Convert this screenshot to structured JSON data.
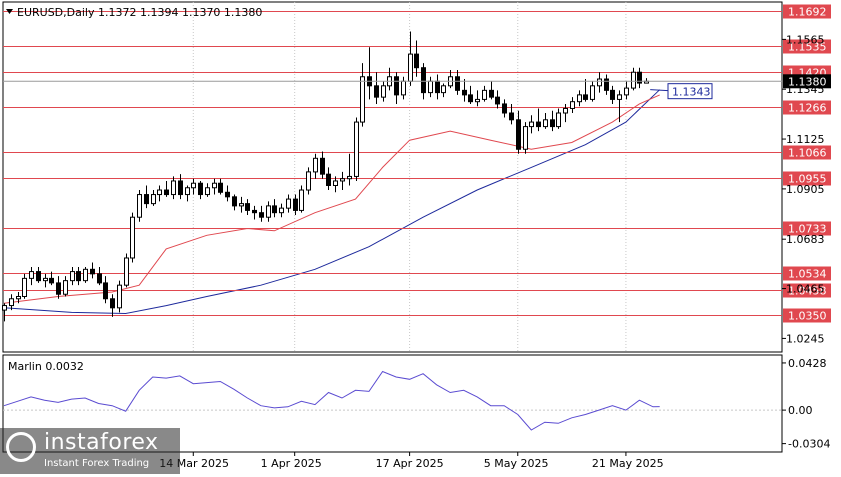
{
  "header": {
    "text": "EURUSD,Daily  1.1372 1.1394 1.1370 1.1380"
  },
  "marlin_label": "Marlin 0.0032",
  "logo": {
    "name": "instaforex",
    "tagline": "Instant Forex Trading"
  },
  "colors": {
    "level_line": "#e0484f",
    "fast_ma": "#e0484f",
    "slow_ma": "#1e2a9c",
    "osc": "#5a4bd1",
    "grid": "#c8c8c8",
    "level_label_bg": "#e0484f",
    "slow_ma_label_border": "#1e2a9c"
  },
  "chart_data": [
    {
      "type": "candlestick",
      "title": "EURUSD,Daily",
      "ohlc_last": {
        "open": 1.1372,
        "high": 1.1394,
        "low": 1.137,
        "close": 1.138
      },
      "ylim": [
        1.0185,
        1.173
      ],
      "y_ticks": [
        "1.1565",
        "1.1345",
        "1.1125",
        "1.0905",
        "1.0683",
        "1.0465",
        "1.0245"
      ],
      "x_ticks": [
        "14 Mar 2025",
        "1 Apr 2025",
        "17 Apr 2025",
        "5 May 2025",
        "21 May 2025"
      ],
      "price_levels": [
        "1.1692",
        "1.1535",
        "1.1420",
        "1.1266",
        "1.1066",
        "1.0955",
        "1.0733",
        "1.0534",
        "1.0458",
        "1.0350"
      ],
      "current_price_label": "1.1380",
      "slow_ma_label": "1.1343",
      "candles": [
        [
          1.037,
          1.04,
          1.032,
          1.039
        ],
        [
          1.039,
          1.044,
          1.037,
          1.042
        ],
        [
          1.042,
          1.045,
          1.04,
          1.043
        ],
        [
          1.043,
          1.053,
          1.042,
          1.051
        ],
        [
          1.051,
          1.056,
          1.048,
          1.054
        ],
        [
          1.054,
          1.056,
          1.049,
          1.05
        ],
        [
          1.05,
          1.053,
          1.047,
          1.051
        ],
        [
          1.051,
          1.054,
          1.048,
          1.049
        ],
        [
          1.049,
          1.052,
          1.042,
          1.044
        ],
        [
          1.044,
          1.052,
          1.043,
          1.05
        ],
        [
          1.05,
          1.056,
          1.048,
          1.054
        ],
        [
          1.054,
          1.056,
          1.048,
          1.05
        ],
        [
          1.05,
          1.056,
          1.049,
          1.055
        ],
        [
          1.055,
          1.058,
          1.051,
          1.053
        ],
        [
          1.053,
          1.056,
          1.048,
          1.049
        ],
        [
          1.049,
          1.052,
          1.04,
          1.042
        ],
        [
          1.042,
          1.044,
          1.034,
          1.038
        ],
        [
          1.038,
          1.05,
          1.036,
          1.048
        ],
        [
          1.048,
          1.062,
          1.047,
          1.06
        ],
        [
          1.06,
          1.08,
          1.058,
          1.078
        ],
        [
          1.078,
          1.09,
          1.076,
          1.088
        ],
        [
          1.088,
          1.092,
          1.082,
          1.084
        ],
        [
          1.084,
          1.09,
          1.083,
          1.088
        ],
        [
          1.088,
          1.092,
          1.085,
          1.09
        ],
        [
          1.09,
          1.094,
          1.087,
          1.088
        ],
        [
          1.088,
          1.096,
          1.086,
          1.094
        ],
        [
          1.094,
          1.097,
          1.086,
          1.088
        ],
        [
          1.088,
          1.092,
          1.085,
          1.091
        ],
        [
          1.091,
          1.095,
          1.088,
          1.093
        ],
        [
          1.093,
          1.094,
          1.086,
          1.088
        ],
        [
          1.088,
          1.093,
          1.087,
          1.091
        ],
        [
          1.091,
          1.095,
          1.088,
          1.093
        ],
        [
          1.093,
          1.095,
          1.088,
          1.089
        ],
        [
          1.089,
          1.092,
          1.085,
          1.087
        ],
        [
          1.087,
          1.088,
          1.081,
          1.083
        ],
        [
          1.083,
          1.087,
          1.08,
          1.084
        ],
        [
          1.084,
          1.086,
          1.079,
          1.081
        ],
        [
          1.081,
          1.083,
          1.077,
          1.08
        ],
        [
          1.08,
          1.083,
          1.076,
          1.078
        ],
        [
          1.078,
          1.085,
          1.076,
          1.083
        ],
        [
          1.083,
          1.086,
          1.078,
          1.08
        ],
        [
          1.08,
          1.084,
          1.078,
          1.082
        ],
        [
          1.082,
          1.088,
          1.08,
          1.086
        ],
        [
          1.086,
          1.088,
          1.079,
          1.081
        ],
        [
          1.081,
          1.092,
          1.08,
          1.09
        ],
        [
          1.09,
          1.1,
          1.088,
          1.098
        ],
        [
          1.098,
          1.106,
          1.095,
          1.104
        ],
        [
          1.104,
          1.107,
          1.095,
          1.097
        ],
        [
          1.097,
          1.1,
          1.09,
          1.092
        ],
        [
          1.092,
          1.096,
          1.089,
          1.094
        ],
        [
          1.094,
          1.098,
          1.09,
          1.095
        ],
        [
          1.095,
          1.106,
          1.092,
          1.096
        ],
        [
          1.096,
          1.122,
          1.094,
          1.12
        ],
        [
          1.12,
          1.146,
          1.118,
          1.14
        ],
        [
          1.14,
          1.153,
          1.13,
          1.136
        ],
        [
          1.136,
          1.142,
          1.128,
          1.131
        ],
        [
          1.131,
          1.138,
          1.129,
          1.136
        ],
        [
          1.136,
          1.144,
          1.134,
          1.14
        ],
        [
          1.14,
          1.142,
          1.128,
          1.132
        ],
        [
          1.132,
          1.14,
          1.13,
          1.138
        ],
        [
          1.138,
          1.16,
          1.136,
          1.15
        ],
        [
          1.15,
          1.156,
          1.14,
          1.144
        ],
        [
          1.144,
          1.146,
          1.13,
          1.133
        ],
        [
          1.133,
          1.14,
          1.131,
          1.138
        ],
        [
          1.138,
          1.141,
          1.13,
          1.133
        ],
        [
          1.133,
          1.137,
          1.131,
          1.136
        ],
        [
          1.136,
          1.143,
          1.135,
          1.14
        ],
        [
          1.14,
          1.143,
          1.132,
          1.134
        ],
        [
          1.134,
          1.139,
          1.129,
          1.132
        ],
        [
          1.132,
          1.136,
          1.128,
          1.129
        ],
        [
          1.129,
          1.134,
          1.127,
          1.13
        ],
        [
          1.13,
          1.136,
          1.129,
          1.134
        ],
        [
          1.134,
          1.138,
          1.13,
          1.131
        ],
        [
          1.131,
          1.134,
          1.126,
          1.128
        ],
        [
          1.128,
          1.13,
          1.122,
          1.124
        ],
        [
          1.124,
          1.128,
          1.119,
          1.121
        ],
        [
          1.121,
          1.125,
          1.106,
          1.108
        ],
        [
          1.108,
          1.12,
          1.106,
          1.118
        ],
        [
          1.118,
          1.123,
          1.115,
          1.12
        ],
        [
          1.12,
          1.126,
          1.116,
          1.118
        ],
        [
          1.118,
          1.124,
          1.117,
          1.121
        ],
        [
          1.121,
          1.125,
          1.116,
          1.118
        ],
        [
          1.118,
          1.126,
          1.117,
          1.124
        ],
        [
          1.124,
          1.128,
          1.12,
          1.126
        ],
        [
          1.126,
          1.131,
          1.124,
          1.129
        ],
        [
          1.129,
          1.134,
          1.127,
          1.132
        ],
        [
          1.132,
          1.139,
          1.129,
          1.13
        ],
        [
          1.13,
          1.138,
          1.129,
          1.136
        ],
        [
          1.136,
          1.142,
          1.133,
          1.139
        ],
        [
          1.139,
          1.141,
          1.132,
          1.134
        ],
        [
          1.134,
          1.136,
          1.128,
          1.13
        ],
        [
          1.13,
          1.134,
          1.12,
          1.132
        ],
        [
          1.132,
          1.138,
          1.13,
          1.135
        ],
        [
          1.135,
          1.144,
          1.134,
          1.142
        ],
        [
          1.142,
          1.144,
          1.135,
          1.1372
        ],
        [
          1.1372,
          1.1394,
          1.137,
          1.138
        ]
      ],
      "fast_ma": [
        [
          0,
          1.04
        ],
        [
          8,
          1.043
        ],
        [
          16,
          1.045
        ],
        [
          20,
          1.048
        ],
        [
          24,
          1.064
        ],
        [
          30,
          1.07
        ],
        [
          36,
          1.073
        ],
        [
          40,
          1.072
        ],
        [
          46,
          1.08
        ],
        [
          52,
          1.086
        ],
        [
          56,
          1.1
        ],
        [
          60,
          1.112
        ],
        [
          66,
          1.116
        ],
        [
          72,
          1.112
        ],
        [
          78,
          1.108
        ],
        [
          84,
          1.111
        ],
        [
          90,
          1.12
        ],
        [
          94,
          1.128
        ],
        [
          97,
          1.132
        ]
      ],
      "slow_ma": [
        [
          0,
          1.038
        ],
        [
          10,
          1.036
        ],
        [
          18,
          1.0355
        ],
        [
          24,
          1.039
        ],
        [
          30,
          1.043
        ],
        [
          38,
          1.048
        ],
        [
          46,
          1.055
        ],
        [
          54,
          1.065
        ],
        [
          62,
          1.078
        ],
        [
          70,
          1.09
        ],
        [
          78,
          1.1
        ],
        [
          86,
          1.11
        ],
        [
          92,
          1.12
        ],
        [
          97,
          1.1343
        ]
      ]
    },
    {
      "type": "line",
      "title": "Marlin",
      "value": 0.0032,
      "ylim": [
        -0.038,
        0.05
      ],
      "y_ticks": [
        "0.0428",
        "0.00",
        "-0.0304"
      ],
      "x": [
        0,
        2,
        4,
        6,
        8,
        10,
        12,
        14,
        16,
        18,
        20,
        22,
        24,
        26,
        28,
        30,
        32,
        34,
        36,
        38,
        40,
        42,
        44,
        46,
        48,
        50,
        52,
        54,
        56,
        58,
        60,
        62,
        64,
        66,
        68,
        70,
        72,
        74,
        76,
        78,
        80,
        82,
        84,
        86,
        88,
        90,
        92,
        94,
        96,
        97
      ],
      "values": [
        0.004,
        0.008,
        0.012,
        0.009,
        0.007,
        0.01,
        0.011,
        0.006,
        0.004,
        -0.001,
        0.018,
        0.03,
        0.029,
        0.031,
        0.024,
        0.025,
        0.026,
        0.019,
        0.011,
        0.004,
        0.002,
        0.003,
        0.008,
        0.005,
        0.016,
        0.011,
        0.018,
        0.017,
        0.035,
        0.03,
        0.028,
        0.033,
        0.023,
        0.016,
        0.018,
        0.012,
        0.004,
        0.004,
        -0.004,
        -0.018,
        -0.011,
        -0.012,
        -0.007,
        -0.004,
        0.0,
        0.004,
        0.0,
        0.009,
        0.003,
        0.0032
      ]
    }
  ]
}
